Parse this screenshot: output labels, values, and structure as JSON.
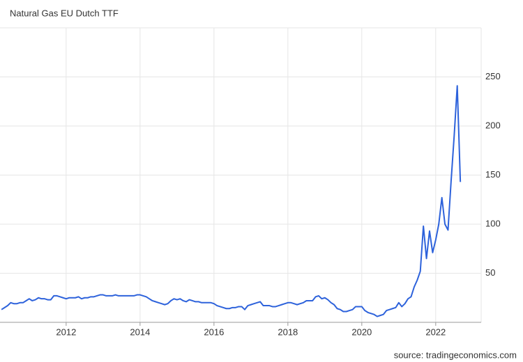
{
  "chart_data": {
    "type": "line",
    "title": "Natural Gas EU Dutch TTF",
    "source": "source: tradingeconomics.com",
    "x": [
      2010.25,
      2010.333,
      2010.417,
      2010.5,
      2010.583,
      2010.667,
      2010.75,
      2010.833,
      2010.917,
      2011,
      2011.083,
      2011.167,
      2011.25,
      2011.333,
      2011.417,
      2011.5,
      2011.583,
      2011.667,
      2011.75,
      2011.833,
      2011.917,
      2012,
      2012.083,
      2012.167,
      2012.25,
      2012.333,
      2012.417,
      2012.5,
      2012.583,
      2012.667,
      2012.75,
      2012.833,
      2012.917,
      2013,
      2013.083,
      2013.167,
      2013.25,
      2013.333,
      2013.417,
      2013.5,
      2013.583,
      2013.667,
      2013.75,
      2013.833,
      2013.917,
      2014,
      2014.083,
      2014.167,
      2014.25,
      2014.333,
      2014.417,
      2014.5,
      2014.583,
      2014.667,
      2014.75,
      2014.833,
      2014.917,
      2015,
      2015.083,
      2015.167,
      2015.25,
      2015.333,
      2015.417,
      2015.5,
      2015.583,
      2015.667,
      2015.75,
      2015.833,
      2015.917,
      2016,
      2016.083,
      2016.167,
      2016.25,
      2016.333,
      2016.417,
      2016.5,
      2016.583,
      2016.667,
      2016.75,
      2016.833,
      2016.917,
      2017,
      2017.083,
      2017.167,
      2017.25,
      2017.333,
      2017.417,
      2017.5,
      2017.583,
      2017.667,
      2017.75,
      2017.833,
      2017.917,
      2018,
      2018.083,
      2018.167,
      2018.25,
      2018.333,
      2018.417,
      2018.5,
      2018.583,
      2018.667,
      2018.75,
      2018.833,
      2018.917,
      2019,
      2019.083,
      2019.167,
      2019.25,
      2019.333,
      2019.417,
      2019.5,
      2019.583,
      2019.667,
      2019.75,
      2019.833,
      2019.917,
      2020,
      2020.083,
      2020.167,
      2020.25,
      2020.333,
      2020.417,
      2020.5,
      2020.583,
      2020.667,
      2020.75,
      2020.833,
      2020.917,
      2021,
      2021.083,
      2021.167,
      2021.25,
      2021.333,
      2021.417,
      2021.5,
      2021.583,
      2021.667,
      2021.75,
      2021.833,
      2021.917,
      2022,
      2022.083,
      2022.167,
      2022.25,
      2022.333,
      2022.417,
      2022.5,
      2022.583,
      2022.667
    ],
    "series": [
      {
        "color": "#2d62db",
        "values": [
          13,
          15,
          17,
          20,
          19,
          19,
          20,
          20,
          22,
          24,
          22,
          23,
          25,
          24,
          24,
          23,
          23,
          27,
          27,
          26,
          25,
          24,
          25,
          25,
          25,
          26,
          24,
          25,
          25,
          26,
          26,
          27,
          28,
          28,
          27,
          27,
          27,
          28,
          27,
          27,
          27,
          27,
          27,
          27,
          28,
          28,
          27,
          26,
          24,
          22,
          21,
          20,
          19,
          18,
          19,
          22,
          24,
          23,
          24,
          22,
          21,
          23,
          22,
          21,
          21,
          20,
          20,
          20,
          20,
          19,
          17,
          16,
          15,
          14,
          14,
          15,
          15,
          16,
          16,
          13,
          17,
          18,
          19,
          20,
          21,
          17,
          17,
          17,
          16,
          16,
          17,
          18,
          19,
          20,
          20,
          19,
          18,
          19,
          20,
          22,
          22,
          22,
          26,
          27,
          24,
          25,
          23,
          20,
          18,
          14,
          13,
          11,
          11,
          12,
          13,
          16,
          16,
          16,
          12,
          10,
          9,
          8,
          6,
          7,
          8,
          12,
          13,
          14,
          15,
          20,
          16,
          19,
          24,
          26,
          36,
          43,
          52,
          98,
          65,
          93,
          71,
          84,
          100,
          127,
          100,
          94,
          144,
          190,
          241,
          143
        ]
      }
    ],
    "xlim": [
      2010.21,
      2023.23
    ],
    "ylim": [
      0,
      300
    ],
    "xticks": [
      2012,
      2014,
      2016,
      2018,
      2020,
      2022
    ],
    "yticks": [
      50,
      100,
      150,
      200,
      250
    ],
    "grid": true
  }
}
